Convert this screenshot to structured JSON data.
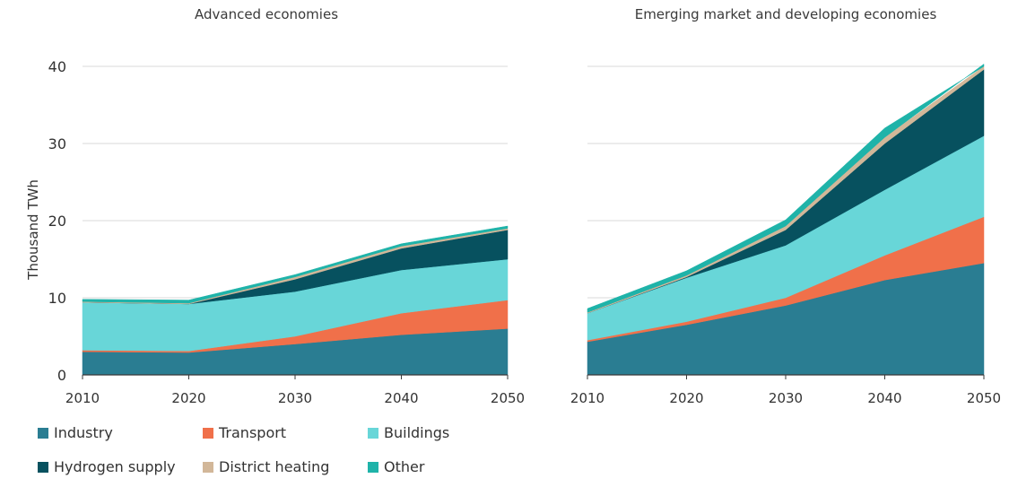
{
  "colors": {
    "Industry": "#2a7d92",
    "Transport": "#f0704a",
    "Buildings": "#68d6d8",
    "Hydrogen supply": "#07515f",
    "District heating": "#d2b799",
    "Other": "#1fb3a9",
    "axis": "#3a3a3a",
    "grid": "#d8d8d8"
  },
  "legend": [
    "Industry",
    "Transport",
    "Buildings",
    "Hydrogen supply",
    "District heating",
    "Other"
  ],
  "chart_data": [
    {
      "type": "area",
      "stacked": true,
      "title": "Advanced economies",
      "ylabel": "Thousand TWh",
      "x": [
        2010,
        2020,
        2030,
        2040,
        2050
      ],
      "ylim": [
        0,
        40
      ],
      "yticks": [
        0,
        10,
        20,
        30,
        40
      ],
      "grid": true,
      "series": [
        {
          "name": "Industry",
          "values": [
            3.0,
            2.9,
            4.0,
            5.2,
            6.0
          ]
        },
        {
          "name": "Transport",
          "values": [
            0.2,
            0.2,
            1.0,
            2.8,
            3.7
          ]
        },
        {
          "name": "Buildings",
          "values": [
            6.2,
            6.1,
            5.8,
            5.6,
            5.3
          ]
        },
        {
          "name": "Hydrogen supply",
          "values": [
            0.0,
            0.0,
            1.6,
            2.8,
            3.8
          ]
        },
        {
          "name": "District heating",
          "values": [
            0.1,
            0.1,
            0.3,
            0.3,
            0.2
          ]
        },
        {
          "name": "Other",
          "values": [
            0.3,
            0.4,
            0.3,
            0.3,
            0.3
          ]
        }
      ]
    },
    {
      "type": "area",
      "stacked": true,
      "title": "Emerging market and developing economies",
      "ylabel": "",
      "x": [
        2010,
        2020,
        2030,
        2040,
        2050
      ],
      "ylim": [
        0,
        40
      ],
      "yticks": [
        0,
        10,
        20,
        30,
        40
      ],
      "grid": true,
      "series": [
        {
          "name": "Industry",
          "values": [
            4.3,
            6.5,
            9.0,
            12.3,
            14.5
          ]
        },
        {
          "name": "Transport",
          "values": [
            0.2,
            0.4,
            1.0,
            3.2,
            6.0
          ]
        },
        {
          "name": "Buildings",
          "values": [
            3.5,
            5.7,
            6.8,
            8.5,
            10.5
          ]
        },
        {
          "name": "Hydrogen supply",
          "values": [
            0.0,
            0.1,
            2.0,
            6.0,
            8.6
          ]
        },
        {
          "name": "District heating",
          "values": [
            0.1,
            0.2,
            0.5,
            0.8,
            0.7
          ]
        },
        {
          "name": "Other",
          "values": [
            0.5,
            0.6,
            0.8,
            1.2,
            1.2
          ]
        }
      ]
    }
  ]
}
